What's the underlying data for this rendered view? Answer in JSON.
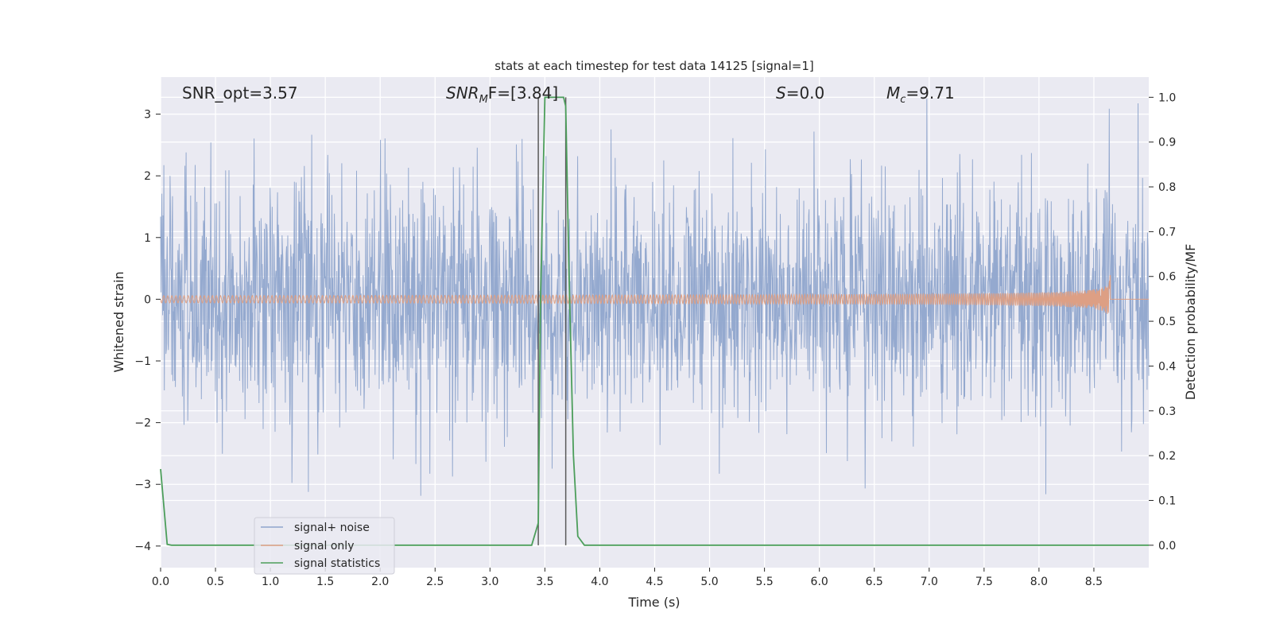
{
  "chart_data": {
    "type": "line",
    "title": "stats at each timestep for test data 14125 [signal=1]",
    "xlabel": "Time (s)",
    "ylabel_left": "Whitened strain",
    "ylabel_right": "Detection probability/MF",
    "xlim": [
      0.0,
      9.0
    ],
    "ylim_left": [
      -4.35,
      3.6
    ],
    "ylim_right": [
      -0.05,
      1.045
    ],
    "x_ticks": [
      "0.0",
      "0.5",
      "1.0",
      "1.5",
      "2.0",
      "2.5",
      "3.0",
      "3.5",
      "4.0",
      "4.5",
      "5.0",
      "5.5",
      "6.0",
      "6.5",
      "7.0",
      "7.5",
      "8.0",
      "8.5"
    ],
    "x_tick_values": [
      0.0,
      0.5,
      1.0,
      1.5,
      2.0,
      2.5,
      3.0,
      3.5,
      4.0,
      4.5,
      5.0,
      5.5,
      6.0,
      6.5,
      7.0,
      7.5,
      8.0,
      8.5
    ],
    "y_left_ticks": [
      "3",
      "2",
      "1",
      "0",
      "−1",
      "−2",
      "−3",
      "−4"
    ],
    "y_left_tick_values": [
      3,
      2,
      1,
      0,
      -1,
      -2,
      -3,
      -4
    ],
    "y_right_ticks": [
      "1.0",
      "0.9",
      "0.8",
      "0.7",
      "0.6",
      "0.5",
      "0.4",
      "0.3",
      "0.2",
      "0.1",
      "0.0"
    ],
    "y_right_tick_values": [
      1.0,
      0.9,
      0.8,
      0.7,
      0.6,
      0.5,
      0.4,
      0.3,
      0.2,
      0.1,
      0.0
    ],
    "annotations": {
      "snr_opt": "SNR_opt=3.57",
      "snr_mf_name": "SNR",
      "snr_mf_sub": "M",
      "snr_mf_rest": "F=[3.84]",
      "s_name": "S",
      "s_value": "=0.0",
      "mc_name": "M",
      "mc_sub": "c",
      "mc_value": "=9.71"
    },
    "grid": true,
    "legend_position": "lower-left",
    "series": [
      {
        "name": "signal+ noise",
        "axis": "left",
        "color": "#8fa5cc",
        "description_range": [
          -4.0,
          3.25
        ]
      },
      {
        "name": "signal only",
        "axis": "left",
        "color": "#dd9f84",
        "chirp_end_time": 8.65,
        "chirp_peak_amplitude": 0.4
      },
      {
        "name": "signal statistics",
        "axis": "right",
        "color": "#4c9e5b",
        "x": [
          0.0,
          0.06,
          0.1,
          0.2,
          3.38,
          3.44,
          3.46,
          3.5,
          3.53,
          3.67,
          3.69,
          3.72,
          3.76,
          3.8,
          3.86,
          9.0
        ],
        "values": [
          0.17,
          0.002,
          0.0,
          0.0,
          0.0,
          0.05,
          0.55,
          1.0,
          1.0,
          1.0,
          0.98,
          0.6,
          0.2,
          0.02,
          0.0,
          0.0
        ]
      }
    ],
    "markers": [
      {
        "x": 3.44,
        "color": "#5a5a5a"
      },
      {
        "x": 3.69,
        "color": "#5a5a5a"
      }
    ]
  }
}
